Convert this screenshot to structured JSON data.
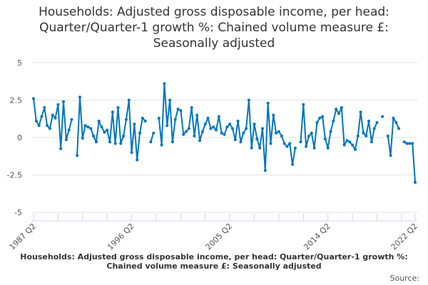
{
  "chart_data": {
    "type": "line",
    "title_lines": [
      "Households: Adjusted gross disposable income, per head:",
      "Quarter/Quarter-1 growth %: Chained volume measure £:",
      "Seasonally adjusted"
    ],
    "xlabel": "",
    "ylabel": "",
    "ylim": [
      -5,
      5
    ],
    "yticks": [
      "5",
      "2.5",
      "0",
      "-2.5",
      "-5"
    ],
    "xtick_labels": [
      "1987 Q2",
      "1996 Q2",
      "2005 Q2",
      "2014 Q2",
      "2022 Q2"
    ],
    "grid": true,
    "legend_position": "bottom",
    "line_color": "#0075c2",
    "x": [
      "1987 Q2",
      "1987 Q3",
      "1987 Q4",
      "1988 Q1",
      "1988 Q2",
      "1988 Q3",
      "1988 Q4",
      "1989 Q1",
      "1989 Q2",
      "1989 Q3",
      "1989 Q4",
      "1990 Q1",
      "1990 Q2",
      "1990 Q3",
      "1990 Q4",
      "1991 Q1",
      "1991 Q2",
      "1991 Q3",
      "1991 Q4",
      "1992 Q1",
      "1992 Q2",
      "1992 Q3",
      "1992 Q4",
      "1993 Q1",
      "1993 Q2",
      "1993 Q3",
      "1993 Q4",
      "1994 Q1",
      "1994 Q2",
      "1994 Q3",
      "1994 Q4",
      "1995 Q1",
      "1995 Q2",
      "1995 Q3",
      "1995 Q4",
      "1996 Q1",
      "1996 Q2",
      "1996 Q3",
      "1996 Q4",
      "1997 Q1",
      "1997 Q2",
      "1997 Q3",
      "1997 Q4",
      "1998 Q1",
      "1998 Q2",
      "1998 Q3",
      "1998 Q4",
      "1999 Q1",
      "1999 Q2",
      "1999 Q3",
      "1999 Q4",
      "2000 Q1",
      "2000 Q2",
      "2000 Q3",
      "2000 Q4",
      "2001 Q1",
      "2001 Q2",
      "2001 Q3",
      "2001 Q4",
      "2002 Q1",
      "2002 Q2",
      "2002 Q3",
      "2002 Q4",
      "2003 Q1",
      "2003 Q2",
      "2003 Q3",
      "2003 Q4",
      "2004 Q1",
      "2004 Q2",
      "2004 Q3",
      "2004 Q4",
      "2005 Q1",
      "2005 Q2",
      "2005 Q3",
      "2005 Q4",
      "2006 Q1",
      "2006 Q2",
      "2006 Q3",
      "2006 Q4",
      "2007 Q1",
      "2007 Q2",
      "2007 Q3",
      "2007 Q4",
      "2008 Q1",
      "2008 Q2",
      "2008 Q3",
      "2008 Q4",
      "2009 Q1",
      "2009 Q2",
      "2009 Q3",
      "2009 Q4",
      "2010 Q1",
      "2010 Q2",
      "2010 Q3",
      "2010 Q4",
      "2011 Q1",
      "2011 Q2",
      "2011 Q3",
      "2011 Q4",
      "2012 Q1",
      "2012 Q2",
      "2012 Q3",
      "2012 Q4",
      "2013 Q1",
      "2013 Q2",
      "2013 Q3",
      "2013 Q4",
      "2014 Q1",
      "2014 Q2",
      "2014 Q3",
      "2014 Q4",
      "2015 Q1",
      "2015 Q2",
      "2015 Q3",
      "2015 Q4",
      "2016 Q1",
      "2016 Q2",
      "2016 Q3",
      "2016 Q4",
      "2017 Q1",
      "2017 Q2",
      "2017 Q3",
      "2017 Q4",
      "2018 Q1",
      "2018 Q2",
      "2018 Q3",
      "2018 Q4",
      "2019 Q1",
      "2019 Q2",
      "2019 Q3",
      "2019 Q4",
      "2020 Q1",
      "2020 Q2",
      "2020 Q3",
      "2020 Q4",
      "2021 Q1",
      "2021 Q2",
      "2021 Q3",
      "2021 Q4",
      "2022 Q1",
      "2022 Q2"
    ],
    "series": [
      {
        "name": "Households: Adjusted gross disposable income, per head: Quarter/Quarter-1 growth %: Chained volume measure £: Seasonally adjusted",
        "values": [
          2.6,
          1.1,
          0.8,
          1.4,
          2.0,
          0.8,
          0.6,
          1.5,
          1.3,
          2.2,
          -0.75,
          2.4,
          -0.15,
          0.5,
          1.2,
          null,
          -1.2,
          2.7,
          -0.05,
          0.8,
          0.7,
          0.6,
          0.1,
          -0.3,
          1.1,
          0.7,
          0.35,
          0.5,
          -0.3,
          1.7,
          -0.4,
          2.0,
          -0.4,
          0.1,
          1.2,
          2.5,
          -1.0,
          0.9,
          -1.5,
          0.3,
          1.3,
          1.1,
          null,
          -0.3,
          0.3,
          null,
          1.3,
          -0.5,
          3.6,
          0.8,
          2.5,
          -0.3,
          1.2,
          1.9,
          1.8,
          0.2,
          0.4,
          0.6,
          2.0,
          0.1,
          1.5,
          -0.2,
          0.4,
          0.9,
          1.3,
          0.6,
          0.7,
          0.5,
          1.4,
          0.3,
          0.2,
          0.7,
          0.9,
          0.6,
          -0.15,
          1.1,
          -0.3,
          0.3,
          0.6,
          2.5,
          -0.7,
          0.9,
          -0.1,
          -0.7,
          0.6,
          -2.2,
          2.3,
          -0.4,
          1.5,
          0.3,
          0.4,
          0.1,
          -0.4,
          -0.6,
          -0.4,
          -1.8,
          -0.7,
          null,
          -0.3,
          2.2,
          -0.6,
          0.1,
          0.3,
          -0.7,
          1.0,
          1.3,
          1.4,
          -0.1,
          -0.7,
          0.4,
          1.1,
          1.9,
          1.6,
          2.0,
          -0.5,
          -0.2,
          -0.3,
          -0.5,
          -0.8,
          0.1,
          1.7,
          0.3,
          0.1,
          1.1,
          -0.3,
          0.6,
          1.0,
          null,
          1.4,
          null,
          0.1,
          -1.2,
          1.3,
          1.0,
          0.6,
          null,
          -0.3,
          -0.4,
          -0.4,
          -0.4,
          -3.0
        ]
      }
    ]
  },
  "source_label": "Source:"
}
